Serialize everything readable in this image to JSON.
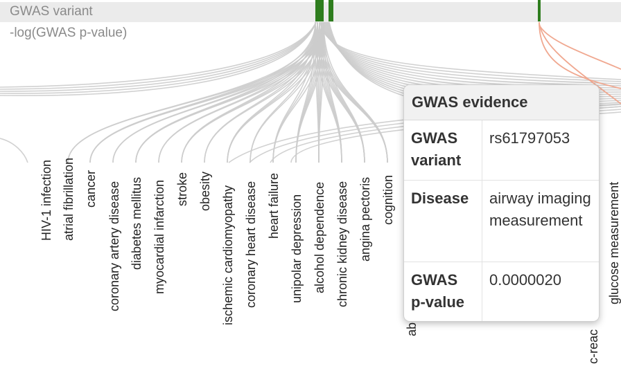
{
  "track": {
    "title": "GWAS variant",
    "subtitle": "-log(GWAS p-value)"
  },
  "diseases": [
    "HIV-1 infection",
    "atrial fibrillation",
    "cancer",
    "coronary artery disease",
    "diabetes mellitus",
    "myocardial infarction",
    "stroke",
    "obesity",
    "ischemic cardiomyopathy",
    "coronary heart disease",
    "heart failure",
    "unipolar depression",
    "alcohol dependence",
    "chronic kidney disease",
    "angina pectoris",
    "cognition"
  ],
  "partial_labels": {
    "left_truncated": "ab",
    "crp_truncated": "c-reac",
    "glucose": "glucose measurement"
  },
  "tooltip": {
    "title": "GWAS evidence",
    "rows": [
      {
        "key": "GWAS variant",
        "value": "rs61797053"
      },
      {
        "key": "Disease",
        "value": "airway imaging measurement"
      },
      {
        "key": "GWAS p-value",
        "value": "0.0000020"
      }
    ]
  },
  "colors": {
    "variant_bar": "#2e7d1e",
    "link_gray": "#cccccc",
    "link_highlight": "#f0a890",
    "track_bg": "#ebebeb"
  }
}
